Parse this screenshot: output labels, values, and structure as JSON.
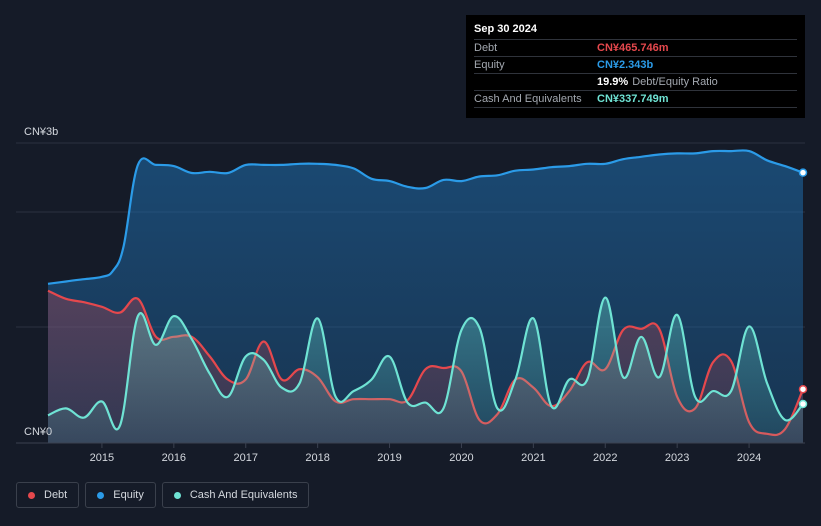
{
  "tooltip": {
    "date": "Sep 30 2024",
    "rows": [
      {
        "label": "Debt",
        "value": "CN¥465.746m",
        "color": "#e5484d"
      },
      {
        "label": "Equity",
        "value": "CN¥2.343b",
        "color": "#2b9be8"
      },
      {
        "label": "",
        "value": "19.9%",
        "suffix": "Debt/Equity Ratio",
        "color": "#ffffff"
      },
      {
        "label": "Cash And Equivalents",
        "value": "CN¥337.749m",
        "color": "#6fe3d4"
      }
    ]
  },
  "legend": [
    {
      "label": "Debt",
      "color": "#e5484d"
    },
    {
      "label": "Equity",
      "color": "#2b9be8"
    },
    {
      "label": "Cash And Equivalents",
      "color": "#6fe3d4"
    }
  ],
  "chart_data": {
    "type": "area",
    "title": "",
    "xlabel": "",
    "ylabel": "",
    "y_top_label": "CN¥3b",
    "y_bottom_label": "CN¥0",
    "ylim": [
      0,
      2.6
    ],
    "xlim": [
      2014.25,
      2024.75
    ],
    "x_ticks": [
      2015,
      2016,
      2017,
      2018,
      2019,
      2020,
      2021,
      2022,
      2023,
      2024
    ],
    "x_tick_labels": [
      "2015",
      "2016",
      "2017",
      "2018",
      "2019",
      "2020",
      "2021",
      "2022",
      "2023",
      "2024"
    ],
    "grid": true,
    "series": [
      {
        "name": "Equity",
        "color": "#2b9be8",
        "x": [
          2014.25,
          2014.5,
          2014.75,
          2015.0,
          2015.15,
          2015.3,
          2015.5,
          2015.75,
          2016.0,
          2016.25,
          2016.5,
          2016.75,
          2017.0,
          2017.25,
          2017.5,
          2017.75,
          2018.0,
          2018.25,
          2018.5,
          2018.75,
          2019.0,
          2019.25,
          2019.5,
          2019.75,
          2020.0,
          2020.25,
          2020.5,
          2020.75,
          2021.0,
          2021.25,
          2021.5,
          2021.75,
          2022.0,
          2022.25,
          2022.5,
          2022.75,
          2023.0,
          2023.25,
          2023.5,
          2023.75,
          2024.0,
          2024.25,
          2024.5,
          2024.75
        ],
        "values": [
          1.38,
          1.4,
          1.42,
          1.44,
          1.49,
          1.7,
          2.41,
          2.41,
          2.4,
          2.34,
          2.35,
          2.34,
          2.41,
          2.41,
          2.41,
          2.42,
          2.42,
          2.41,
          2.38,
          2.29,
          2.27,
          2.22,
          2.21,
          2.28,
          2.27,
          2.31,
          2.32,
          2.36,
          2.37,
          2.39,
          2.4,
          2.42,
          2.42,
          2.46,
          2.48,
          2.5,
          2.51,
          2.51,
          2.53,
          2.53,
          2.53,
          2.45,
          2.4,
          2.343
        ]
      },
      {
        "name": "Debt",
        "color": "#e5484d",
        "x": [
          2014.25,
          2014.5,
          2014.75,
          2015.0,
          2015.25,
          2015.5,
          2015.75,
          2016.0,
          2016.25,
          2016.5,
          2016.75,
          2017.0,
          2017.25,
          2017.5,
          2017.75,
          2018.0,
          2018.25,
          2018.5,
          2018.75,
          2019.0,
          2019.25,
          2019.5,
          2019.75,
          2020.0,
          2020.25,
          2020.5,
          2020.75,
          2021.0,
          2021.25,
          2021.5,
          2021.75,
          2022.0,
          2022.25,
          2022.5,
          2022.75,
          2023.0,
          2023.25,
          2023.5,
          2023.75,
          2024.0,
          2024.25,
          2024.5,
          2024.75
        ],
        "values": [
          1.32,
          1.25,
          1.22,
          1.18,
          1.13,
          1.25,
          0.92,
          0.92,
          0.92,
          0.75,
          0.55,
          0.55,
          0.88,
          0.55,
          0.64,
          0.57,
          0.36,
          0.38,
          0.38,
          0.38,
          0.37,
          0.64,
          0.65,
          0.62,
          0.2,
          0.25,
          0.55,
          0.48,
          0.32,
          0.45,
          0.7,
          0.64,
          0.98,
          0.99,
          0.99,
          0.4,
          0.3,
          0.7,
          0.71,
          0.18,
          0.08,
          0.12,
          0.466
        ]
      },
      {
        "name": "Cash And Equivalents",
        "color": "#6fe3d4",
        "x": [
          2014.25,
          2014.5,
          2014.75,
          2015.0,
          2015.25,
          2015.5,
          2015.75,
          2016.0,
          2016.25,
          2016.5,
          2016.75,
          2017.0,
          2017.25,
          2017.5,
          2017.75,
          2018.0,
          2018.25,
          2018.5,
          2018.75,
          2019.0,
          2019.25,
          2019.5,
          2019.75,
          2020.0,
          2020.25,
          2020.5,
          2020.75,
          2021.0,
          2021.25,
          2021.5,
          2021.75,
          2022.0,
          2022.25,
          2022.5,
          2022.75,
          2023.0,
          2023.25,
          2023.5,
          2023.75,
          2024.0,
          2024.25,
          2024.5,
          2024.75
        ],
        "values": [
          0.24,
          0.3,
          0.22,
          0.36,
          0.15,
          1.1,
          0.85,
          1.1,
          0.9,
          0.6,
          0.4,
          0.75,
          0.72,
          0.48,
          0.52,
          1.08,
          0.4,
          0.45,
          0.55,
          0.75,
          0.35,
          0.35,
          0.3,
          0.98,
          1.0,
          0.3,
          0.55,
          1.08,
          0.32,
          0.55,
          0.55,
          1.26,
          0.57,
          0.92,
          0.57,
          1.11,
          0.4,
          0.45,
          0.45,
          1.01,
          0.52,
          0.2,
          0.338
        ]
      }
    ]
  }
}
